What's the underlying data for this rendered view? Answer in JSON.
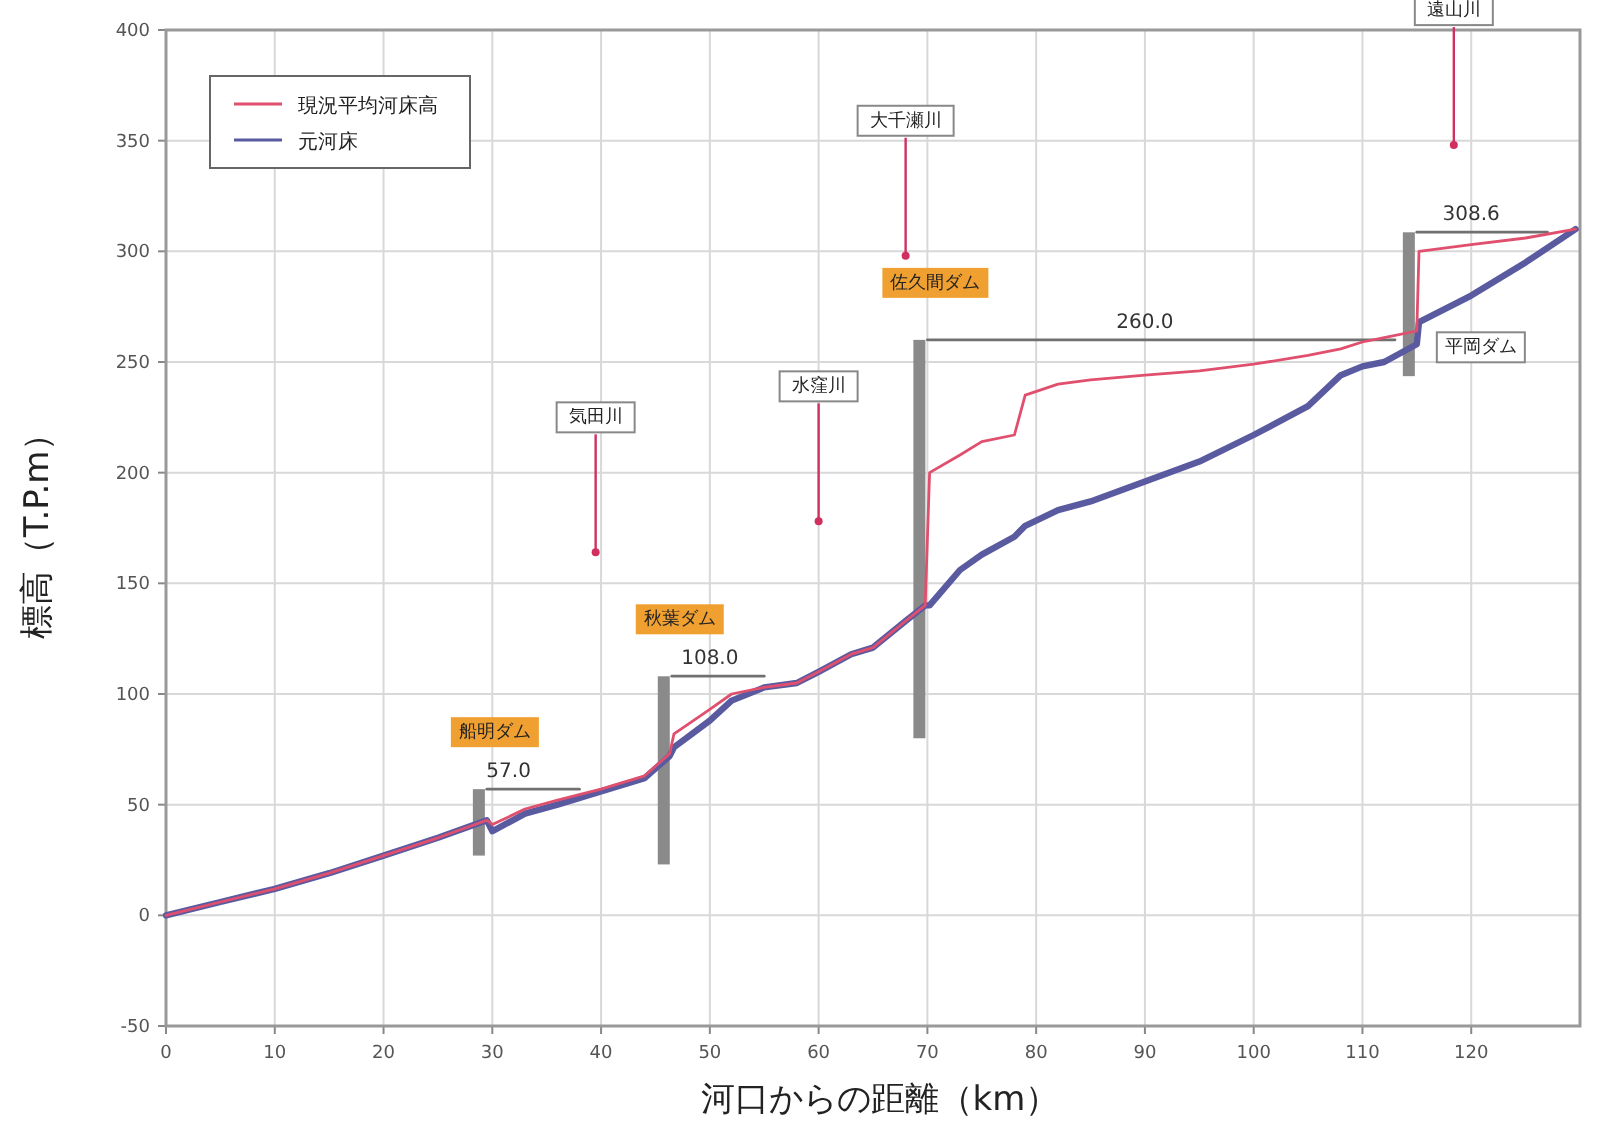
{
  "chart_data": {
    "type": "line",
    "xlabel": "河口からの距離（km）",
    "ylabel": "標高（T.P.m）",
    "x": [
      0,
      5,
      10,
      15,
      20,
      25,
      29.5,
      30,
      33,
      36,
      40,
      44,
      46.3,
      46.7,
      50,
      52,
      55,
      58,
      60,
      63,
      65,
      68,
      69.8,
      70.2,
      73,
      75,
      78,
      79,
      82,
      85,
      90,
      95,
      100,
      105,
      108,
      110,
      112,
      115,
      115.2,
      120,
      125,
      129.6
    ],
    "series": [
      {
        "name": "現況平均河床高",
        "color": "#e0506e",
        "values": [
          0,
          6,
          12,
          19,
          27,
          35,
          43,
          41,
          48,
          52,
          57,
          63,
          73,
          82,
          93,
          100,
          103,
          105,
          110,
          118,
          121,
          133,
          140,
          200,
          208,
          214,
          217,
          235,
          240,
          242,
          244,
          246,
          249,
          253,
          256,
          259,
          261,
          264,
          300,
          303,
          306,
          310
        ]
      },
      {
        "name": "元河床",
        "color": "#5a5aa0",
        "values": [
          0,
          6,
          12,
          19,
          27,
          35,
          43,
          38,
          46,
          50,
          56,
          62,
          72,
          76,
          88,
          97,
          103,
          105,
          110,
          118,
          121,
          133,
          140,
          140,
          156,
          163,
          171,
          176,
          183,
          187,
          196,
          205,
          217,
          230,
          244,
          248,
          250,
          258,
          268,
          280,
          295,
          310
        ]
      },
      {
        "color": "#707070",
        "x": [
          29.5,
          38
        ],
        "values": [
          57,
          57
        ]
      },
      {
        "color": "#707070",
        "x": [
          46.5,
          55
        ],
        "values": [
          108,
          108
        ]
      },
      {
        "color": "#707070",
        "x": [
          70,
          113
        ],
        "values": [
          260,
          260
        ]
      },
      {
        "color": "#707070",
        "x": [
          115,
          127
        ],
        "values": [
          308.6,
          308.6
        ]
      }
    ],
    "xlim": [
      0,
      130
    ],
    "ylim": [
      -50,
      400
    ],
    "xticks": [
      0,
      10,
      20,
      30,
      40,
      50,
      60,
      70,
      80,
      90,
      100,
      110,
      120
    ],
    "yticks": [
      -50,
      0,
      50,
      100,
      150,
      200,
      250,
      300,
      350,
      400
    ],
    "grid": true,
    "legend": "top left",
    "annotations": [
      {
        "text": "57.0",
        "x": 31.5,
        "y": 57
      },
      {
        "text": "108.0",
        "x": 50,
        "y": 108
      },
      {
        "text": "260.0",
        "x": 90,
        "y": 260
      },
      {
        "text": "308.6",
        "x": 120,
        "y": 308.6
      },
      {
        "text": "船明ダム",
        "x": 29.5,
        "y": 57
      },
      {
        "text": "秋葉ダム",
        "x": 46.5,
        "y": 108
      },
      {
        "text": "佐久間ダム",
        "x": 70,
        "y": 260
      },
      "平岡ダム",
      {
        "text": "気田川",
        "x": 39.5,
        "y": 164
      },
      {
        "text": "水窪川",
        "x": 60,
        "y": 178
      },
      {
        "text": "大千瀬川",
        "x": 68,
        "y": 298
      },
      {
        "text": "遠山川",
        "x": 118.4,
        "y": 348
      }
    ]
  }
}
